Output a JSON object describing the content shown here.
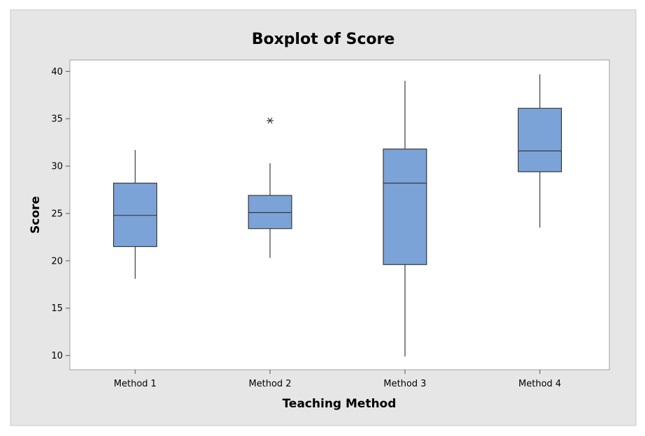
{
  "chart_data": {
    "type": "boxplot",
    "title": "Boxplot of Score",
    "xlabel": "Teaching Method",
    "ylabel": "Score",
    "ylim": [
      8.5,
      41.2
    ],
    "yticks": [
      10,
      15,
      20,
      25,
      30,
      35,
      40
    ],
    "box_color": "#7ba3d8",
    "background_color": "#e6e6e6",
    "grid": false,
    "categories": [
      "Method 1",
      "Method 2",
      "Method 3",
      "Method 4"
    ],
    "boxes": [
      {
        "category": "Method 1",
        "min": 18.1,
        "q1": 21.5,
        "median": 24.8,
        "q3": 28.2,
        "max": 31.7,
        "outliers": []
      },
      {
        "category": "Method 2",
        "min": 20.3,
        "q1": 23.4,
        "median": 25.1,
        "q3": 26.9,
        "max": 30.3,
        "outliers": [
          34.8
        ]
      },
      {
        "category": "Method 3",
        "min": 9.9,
        "q1": 19.6,
        "median": 28.2,
        "q3": 31.8,
        "max": 39.0,
        "outliers": []
      },
      {
        "category": "Method 4",
        "min": 23.5,
        "q1": 29.4,
        "median": 31.6,
        "q3": 36.1,
        "max": 39.7,
        "outliers": []
      }
    ]
  }
}
